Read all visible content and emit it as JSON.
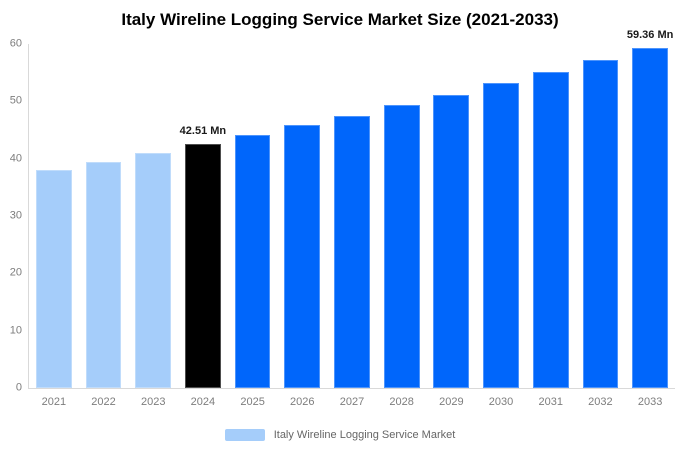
{
  "chart": {
    "title": "Italy Wireline Logging Service Market Size (2021-2033)",
    "legend": {
      "label": "Italy Wireline Logging Service Market",
      "swatch_color": "#A5CDFA"
    }
  },
  "chart_data": {
    "type": "bar",
    "title": "Italy Wireline Logging Service Market Size (2021-2033)",
    "unit": "Mn",
    "categories": [
      "2021",
      "2022",
      "2023",
      "2024",
      "2025",
      "2026",
      "2027",
      "2028",
      "2029",
      "2030",
      "2031",
      "2032",
      "2033"
    ],
    "values": [
      38.03,
      39.47,
      40.96,
      42.51,
      44.12,
      45.79,
      47.52,
      49.32,
      51.18,
      53.12,
      55.13,
      57.21,
      59.36
    ],
    "bar_colors": [
      "#A5CDFA",
      "#A5CDFA",
      "#A5CDFA",
      "#000000",
      "#0066FB",
      "#0066FB",
      "#0066FB",
      "#0066FB",
      "#0066FB",
      "#0066FB",
      "#0066FB",
      "#0066FB",
      "#0066FB"
    ],
    "annotations": [
      {
        "category": "2024",
        "text": "42.51 Mn"
      },
      {
        "category": "2033",
        "text": "59.36 Mn"
      }
    ],
    "ylim": [
      0,
      60
    ],
    "yticks": [
      0,
      10,
      20,
      30,
      40,
      50,
      60
    ],
    "grid": false,
    "legend_position": "bottom",
    "legend_entries": [
      {
        "label": "Italy Wireline Logging Service Market",
        "color": "#A5CDFA"
      }
    ],
    "colors": {
      "historical": "#A5CDFA",
      "highlight": "#000000",
      "forecast": "#0066FB",
      "axis_line": "#d9d9d9",
      "tick_label": "#7d7d7d",
      "annotation_text": "#1a1a1a",
      "legend_text": "#666666"
    }
  }
}
